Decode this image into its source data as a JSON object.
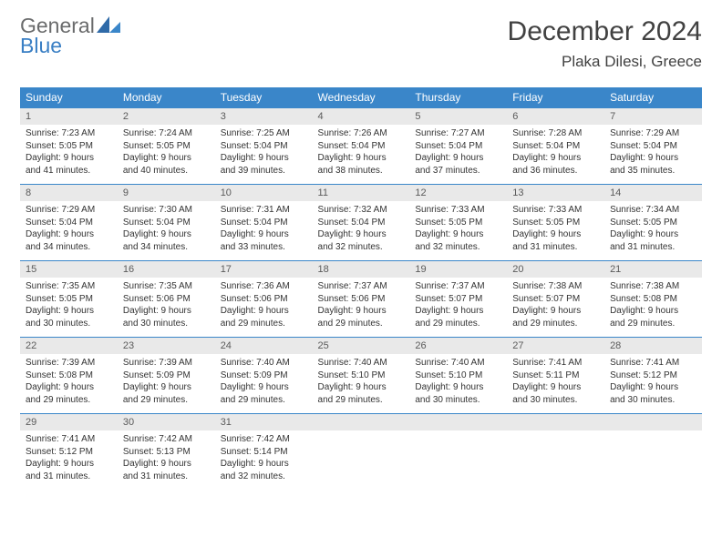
{
  "logo": {
    "general": "General",
    "blue": "Blue",
    "accent": "#3a7fc4",
    "text_color": "#6a6b6c"
  },
  "title": {
    "month": "December 2024",
    "location": "Plaka Dilesi, Greece"
  },
  "styling": {
    "header_bg": "#3a86c9",
    "header_text": "#ffffff",
    "daynum_bg": "#e9e9e9",
    "cell_text": "#333333",
    "border_color": "#3a86c9",
    "title_color": "#414141",
    "font_family": "Arial",
    "month_title_fontsize": 30,
    "location_fontsize": 17,
    "header_fontsize": 12,
    "body_fontsize": 10
  },
  "days_of_week": [
    "Sunday",
    "Monday",
    "Tuesday",
    "Wednesday",
    "Thursday",
    "Friday",
    "Saturday"
  ],
  "weeks": [
    [
      {
        "day": "1",
        "sunrise": "Sunrise: 7:23 AM",
        "sunset": "Sunset: 5:05 PM",
        "daylight1": "Daylight: 9 hours",
        "daylight2": "and 41 minutes."
      },
      {
        "day": "2",
        "sunrise": "Sunrise: 7:24 AM",
        "sunset": "Sunset: 5:05 PM",
        "daylight1": "Daylight: 9 hours",
        "daylight2": "and 40 minutes."
      },
      {
        "day": "3",
        "sunrise": "Sunrise: 7:25 AM",
        "sunset": "Sunset: 5:04 PM",
        "daylight1": "Daylight: 9 hours",
        "daylight2": "and 39 minutes."
      },
      {
        "day": "4",
        "sunrise": "Sunrise: 7:26 AM",
        "sunset": "Sunset: 5:04 PM",
        "daylight1": "Daylight: 9 hours",
        "daylight2": "and 38 minutes."
      },
      {
        "day": "5",
        "sunrise": "Sunrise: 7:27 AM",
        "sunset": "Sunset: 5:04 PM",
        "daylight1": "Daylight: 9 hours",
        "daylight2": "and 37 minutes."
      },
      {
        "day": "6",
        "sunrise": "Sunrise: 7:28 AM",
        "sunset": "Sunset: 5:04 PM",
        "daylight1": "Daylight: 9 hours",
        "daylight2": "and 36 minutes."
      },
      {
        "day": "7",
        "sunrise": "Sunrise: 7:29 AM",
        "sunset": "Sunset: 5:04 PM",
        "daylight1": "Daylight: 9 hours",
        "daylight2": "and 35 minutes."
      }
    ],
    [
      {
        "day": "8",
        "sunrise": "Sunrise: 7:29 AM",
        "sunset": "Sunset: 5:04 PM",
        "daylight1": "Daylight: 9 hours",
        "daylight2": "and 34 minutes."
      },
      {
        "day": "9",
        "sunrise": "Sunrise: 7:30 AM",
        "sunset": "Sunset: 5:04 PM",
        "daylight1": "Daylight: 9 hours",
        "daylight2": "and 34 minutes."
      },
      {
        "day": "10",
        "sunrise": "Sunrise: 7:31 AM",
        "sunset": "Sunset: 5:04 PM",
        "daylight1": "Daylight: 9 hours",
        "daylight2": "and 33 minutes."
      },
      {
        "day": "11",
        "sunrise": "Sunrise: 7:32 AM",
        "sunset": "Sunset: 5:04 PM",
        "daylight1": "Daylight: 9 hours",
        "daylight2": "and 32 minutes."
      },
      {
        "day": "12",
        "sunrise": "Sunrise: 7:33 AM",
        "sunset": "Sunset: 5:05 PM",
        "daylight1": "Daylight: 9 hours",
        "daylight2": "and 32 minutes."
      },
      {
        "day": "13",
        "sunrise": "Sunrise: 7:33 AM",
        "sunset": "Sunset: 5:05 PM",
        "daylight1": "Daylight: 9 hours",
        "daylight2": "and 31 minutes."
      },
      {
        "day": "14",
        "sunrise": "Sunrise: 7:34 AM",
        "sunset": "Sunset: 5:05 PM",
        "daylight1": "Daylight: 9 hours",
        "daylight2": "and 31 minutes."
      }
    ],
    [
      {
        "day": "15",
        "sunrise": "Sunrise: 7:35 AM",
        "sunset": "Sunset: 5:05 PM",
        "daylight1": "Daylight: 9 hours",
        "daylight2": "and 30 minutes."
      },
      {
        "day": "16",
        "sunrise": "Sunrise: 7:35 AM",
        "sunset": "Sunset: 5:06 PM",
        "daylight1": "Daylight: 9 hours",
        "daylight2": "and 30 minutes."
      },
      {
        "day": "17",
        "sunrise": "Sunrise: 7:36 AM",
        "sunset": "Sunset: 5:06 PM",
        "daylight1": "Daylight: 9 hours",
        "daylight2": "and 29 minutes."
      },
      {
        "day": "18",
        "sunrise": "Sunrise: 7:37 AM",
        "sunset": "Sunset: 5:06 PM",
        "daylight1": "Daylight: 9 hours",
        "daylight2": "and 29 minutes."
      },
      {
        "day": "19",
        "sunrise": "Sunrise: 7:37 AM",
        "sunset": "Sunset: 5:07 PM",
        "daylight1": "Daylight: 9 hours",
        "daylight2": "and 29 minutes."
      },
      {
        "day": "20",
        "sunrise": "Sunrise: 7:38 AM",
        "sunset": "Sunset: 5:07 PM",
        "daylight1": "Daylight: 9 hours",
        "daylight2": "and 29 minutes."
      },
      {
        "day": "21",
        "sunrise": "Sunrise: 7:38 AM",
        "sunset": "Sunset: 5:08 PM",
        "daylight1": "Daylight: 9 hours",
        "daylight2": "and 29 minutes."
      }
    ],
    [
      {
        "day": "22",
        "sunrise": "Sunrise: 7:39 AM",
        "sunset": "Sunset: 5:08 PM",
        "daylight1": "Daylight: 9 hours",
        "daylight2": "and 29 minutes."
      },
      {
        "day": "23",
        "sunrise": "Sunrise: 7:39 AM",
        "sunset": "Sunset: 5:09 PM",
        "daylight1": "Daylight: 9 hours",
        "daylight2": "and 29 minutes."
      },
      {
        "day": "24",
        "sunrise": "Sunrise: 7:40 AM",
        "sunset": "Sunset: 5:09 PM",
        "daylight1": "Daylight: 9 hours",
        "daylight2": "and 29 minutes."
      },
      {
        "day": "25",
        "sunrise": "Sunrise: 7:40 AM",
        "sunset": "Sunset: 5:10 PM",
        "daylight1": "Daylight: 9 hours",
        "daylight2": "and 29 minutes."
      },
      {
        "day": "26",
        "sunrise": "Sunrise: 7:40 AM",
        "sunset": "Sunset: 5:10 PM",
        "daylight1": "Daylight: 9 hours",
        "daylight2": "and 30 minutes."
      },
      {
        "day": "27",
        "sunrise": "Sunrise: 7:41 AM",
        "sunset": "Sunset: 5:11 PM",
        "daylight1": "Daylight: 9 hours",
        "daylight2": "and 30 minutes."
      },
      {
        "day": "28",
        "sunrise": "Sunrise: 7:41 AM",
        "sunset": "Sunset: 5:12 PM",
        "daylight1": "Daylight: 9 hours",
        "daylight2": "and 30 minutes."
      }
    ],
    [
      {
        "day": "29",
        "sunrise": "Sunrise: 7:41 AM",
        "sunset": "Sunset: 5:12 PM",
        "daylight1": "Daylight: 9 hours",
        "daylight2": "and 31 minutes."
      },
      {
        "day": "30",
        "sunrise": "Sunrise: 7:42 AM",
        "sunset": "Sunset: 5:13 PM",
        "daylight1": "Daylight: 9 hours",
        "daylight2": "and 31 minutes."
      },
      {
        "day": "31",
        "sunrise": "Sunrise: 7:42 AM",
        "sunset": "Sunset: 5:14 PM",
        "daylight1": "Daylight: 9 hours",
        "daylight2": "and 32 minutes."
      },
      {
        "empty": true
      },
      {
        "empty": true
      },
      {
        "empty": true
      },
      {
        "empty": true
      }
    ]
  ]
}
